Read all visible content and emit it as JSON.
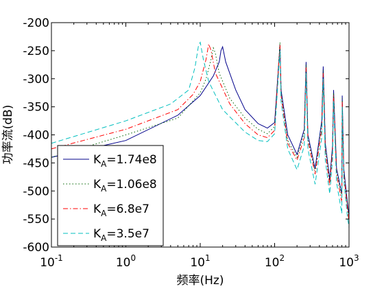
{
  "chart_data": {
    "type": "line",
    "title": "",
    "xlabel": "频率(Hz)",
    "ylabel": "功率流(dB)",
    "xscale": "log",
    "xlim": [
      0.1,
      1000
    ],
    "ylim": [
      -600,
      -200
    ],
    "x_ticks": [
      {
        "value": 0.1,
        "base": "10",
        "exp": "-1"
      },
      {
        "value": 1,
        "base": "10",
        "exp": "0"
      },
      {
        "value": 10,
        "base": "10",
        "exp": "1"
      },
      {
        "value": 100,
        "base": "10",
        "exp": "2"
      },
      {
        "value": 1000,
        "base": "10",
        "exp": "3"
      }
    ],
    "y_ticks": [
      {
        "value": -200,
        "label": "-200"
      },
      {
        "value": -250,
        "label": "-250"
      },
      {
        "value": -300,
        "label": "-300"
      },
      {
        "value": -350,
        "label": "-350"
      },
      {
        "value": -400,
        "label": "-400"
      },
      {
        "value": -450,
        "label": "-450"
      },
      {
        "value": -500,
        "label": "-500"
      },
      {
        "value": -550,
        "label": "-550"
      },
      {
        "value": -600,
        "label": "-600"
      }
    ],
    "grid": false,
    "legend_position": "bottom-left",
    "legend_prefix_base": "K",
    "legend_prefix_sub": "A",
    "series": [
      {
        "name": "=1.74e8",
        "color": "#00008b",
        "dash": "solid",
        "x": [
          0.1,
          1,
          5,
          10,
          15,
          18,
          19,
          20,
          22,
          30,
          40,
          60,
          80,
          100,
          118,
          122,
          150,
          200,
          250,
          265,
          280,
          350,
          430,
          450,
          480,
          550,
          600,
          620,
          680,
          800,
          810,
          850,
          950,
          1000
        ],
        "y": [
          -440,
          -410,
          -365,
          -330,
          -295,
          -270,
          -250,
          -243,
          -270,
          -320,
          -355,
          -380,
          -388,
          -378,
          -240,
          -320,
          -400,
          -435,
          -390,
          -270,
          -400,
          -460,
          -375,
          -278,
          -415,
          -480,
          -420,
          -320,
          -460,
          -505,
          -330,
          -460,
          -520,
          -545
        ]
      },
      {
        "name": "=1.06e8",
        "color": "#006400",
        "dash": "dotted",
        "x": [
          0.1,
          1,
          5,
          10,
          12,
          14,
          15,
          16,
          18,
          25,
          40,
          60,
          80,
          100,
          118,
          122,
          150,
          200,
          250,
          265,
          280,
          350,
          430,
          450,
          480,
          550,
          600,
          620,
          680,
          800,
          810,
          850,
          950,
          1000
        ],
        "y": [
          -440,
          -400,
          -370,
          -325,
          -300,
          -265,
          -245,
          -255,
          -290,
          -335,
          -370,
          -390,
          -398,
          -385,
          -235,
          -325,
          -410,
          -440,
          -395,
          -275,
          -405,
          -465,
          -380,
          -285,
          -420,
          -485,
          -425,
          -325,
          -465,
          -510,
          -335,
          -465,
          -525,
          -550
        ]
      },
      {
        "name": "=6.8e7",
        "color": "#ff0000",
        "dash": "dashdot",
        "x": [
          0.1,
          1,
          5,
          8,
          10,
          12,
          13,
          14,
          16,
          25,
          40,
          60,
          80,
          100,
          118,
          122,
          150,
          200,
          250,
          265,
          280,
          350,
          430,
          450,
          480,
          550,
          600,
          620,
          680,
          800,
          810,
          850,
          950,
          1000
        ],
        "y": [
          -425,
          -390,
          -355,
          -328,
          -305,
          -265,
          -238,
          -250,
          -290,
          -345,
          -380,
          -400,
          -405,
          -392,
          -240,
          -330,
          -415,
          -445,
          -405,
          -280,
          -410,
          -470,
          -390,
          -290,
          -430,
          -490,
          -430,
          -330,
          -470,
          -520,
          -340,
          -470,
          -530,
          -555
        ]
      },
      {
        "name": "=3.5e7",
        "color": "#00bfbf",
        "dash": "dashed",
        "x": [
          0.1,
          1,
          4,
          7,
          8.5,
          9.5,
          10,
          11,
          13,
          20,
          40,
          60,
          80,
          100,
          118,
          122,
          150,
          200,
          250,
          265,
          280,
          350,
          430,
          450,
          480,
          550,
          600,
          620,
          680,
          800,
          810,
          850,
          950,
          1000
        ],
        "y": [
          -415,
          -375,
          -345,
          -320,
          -280,
          -240,
          -235,
          -265,
          -305,
          -355,
          -395,
          -410,
          -412,
          -398,
          -250,
          -340,
          -425,
          -462,
          -420,
          -290,
          -425,
          -488,
          -405,
          -300,
          -445,
          -505,
          -445,
          -340,
          -485,
          -540,
          -350,
          -480,
          -545,
          -565
        ]
      }
    ]
  }
}
